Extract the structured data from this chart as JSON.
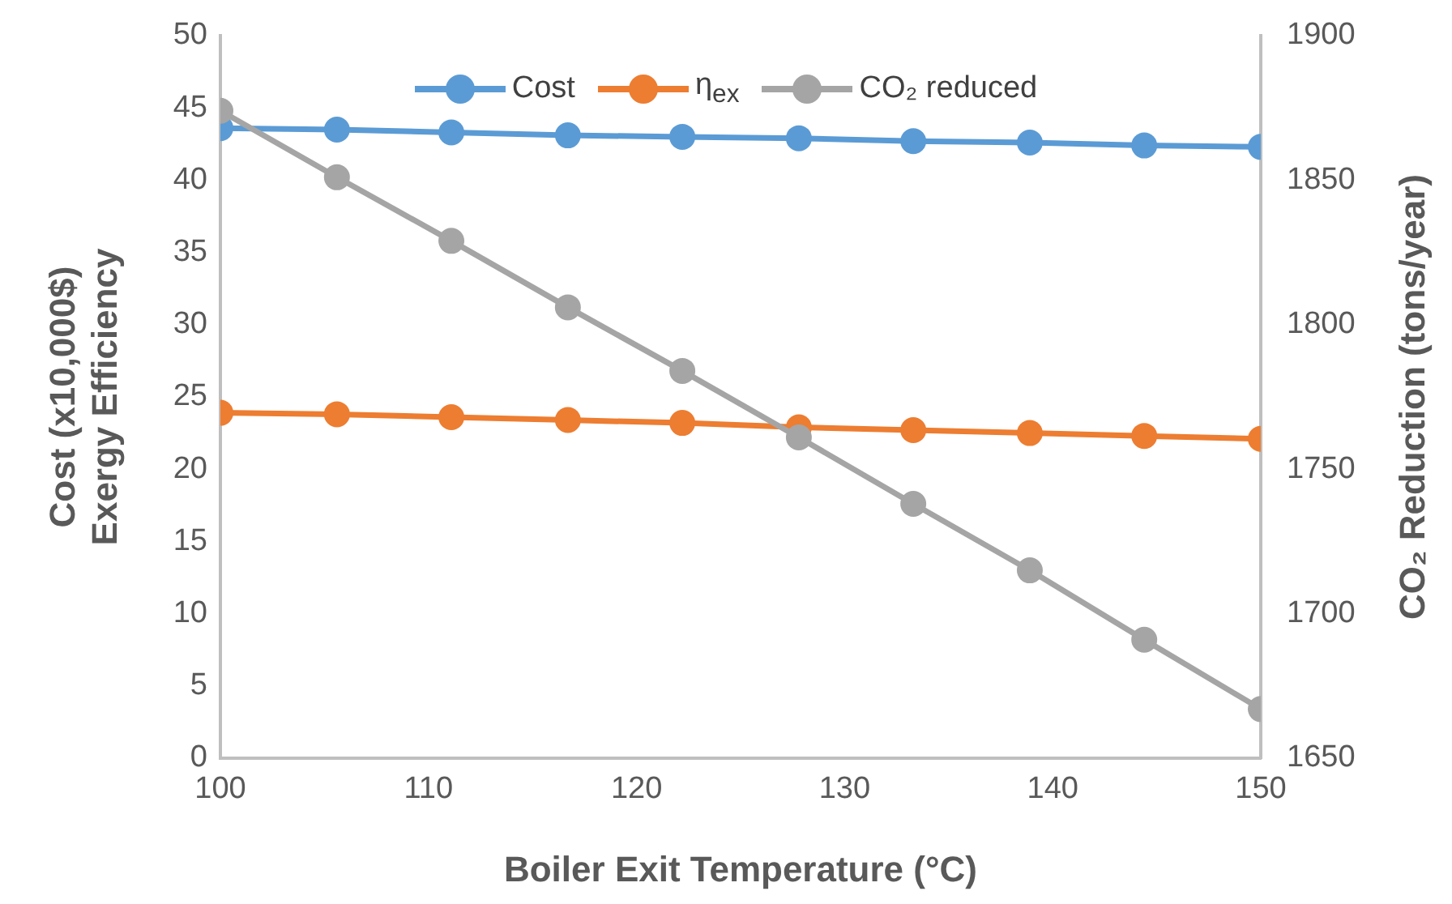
{
  "chart_data": {
    "type": "line",
    "xlabel": "Boiler Exit Temperature (°C)",
    "ylabel": "Cost (x10,000$)\nExergy Efficiency",
    "y2label": "CO₂ Reduction (tons/year)",
    "x": [
      100,
      105.6,
      111.1,
      116.7,
      122.2,
      127.8,
      133.3,
      138.9,
      144.4,
      150
    ],
    "series": [
      {
        "name": "Cost",
        "color": "#5b9bd5",
        "values": [
          43.6,
          43.5,
          43.3,
          43.1,
          43.0,
          42.9,
          42.7,
          42.6,
          42.4,
          42.3
        ]
      },
      {
        "name": "η$_{ex}$",
        "color": "#ed7d31",
        "values": [
          23.9,
          23.8,
          23.6,
          23.4,
          23.2,
          22.9,
          22.7,
          22.5,
          22.3,
          22.1
        ]
      },
      {
        "name": "CO₂ reduced",
        "color": "#a5a5a5",
        "axis": "y2",
        "values": [
          1874,
          1851,
          1829,
          1806,
          1784,
          1761,
          1738,
          1715,
          1691,
          1667
        ]
      }
    ],
    "xlim": [
      100,
      150
    ],
    "xticks": [
      100,
      110,
      120,
      130,
      140,
      150
    ],
    "ylim": [
      0,
      50
    ],
    "yticks": [
      0,
      5,
      10,
      15,
      20,
      25,
      30,
      35,
      40,
      45,
      50
    ],
    "y2lim": [
      1650,
      1900
    ],
    "y2ticks": [
      1650,
      1700,
      1750,
      1800,
      1850,
      1900
    ],
    "grid": false,
    "legend": "top",
    "marker": "circle",
    "line_style": "solid"
  }
}
